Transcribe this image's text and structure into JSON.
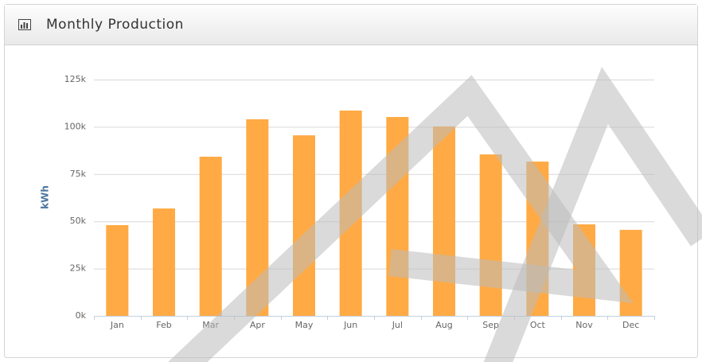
{
  "chart_data": {
    "type": "bar",
    "title": "Monthly Production",
    "y_axis_label": "kWh",
    "categories": [
      "Jan",
      "Feb",
      "Mar",
      "Apr",
      "May",
      "Jun",
      "Jul",
      "Aug",
      "Sep",
      "Oct",
      "Nov",
      "Dec"
    ],
    "values": [
      48000,
      56800,
      84200,
      104000,
      95500,
      108600,
      105200,
      100200,
      85400,
      81600,
      48400,
      45500
    ],
    "color": "#ffaa44",
    "ylim": [
      0,
      125000
    ],
    "yticks": [
      {
        "value": 0,
        "label": "0k"
      },
      {
        "value": 25000,
        "label": "25k"
      },
      {
        "value": 50000,
        "label": "50k"
      },
      {
        "value": 75000,
        "label": "75k"
      },
      {
        "value": 100000,
        "label": "100k"
      },
      {
        "value": 125000,
        "label": "125k"
      }
    ],
    "grid": true
  }
}
